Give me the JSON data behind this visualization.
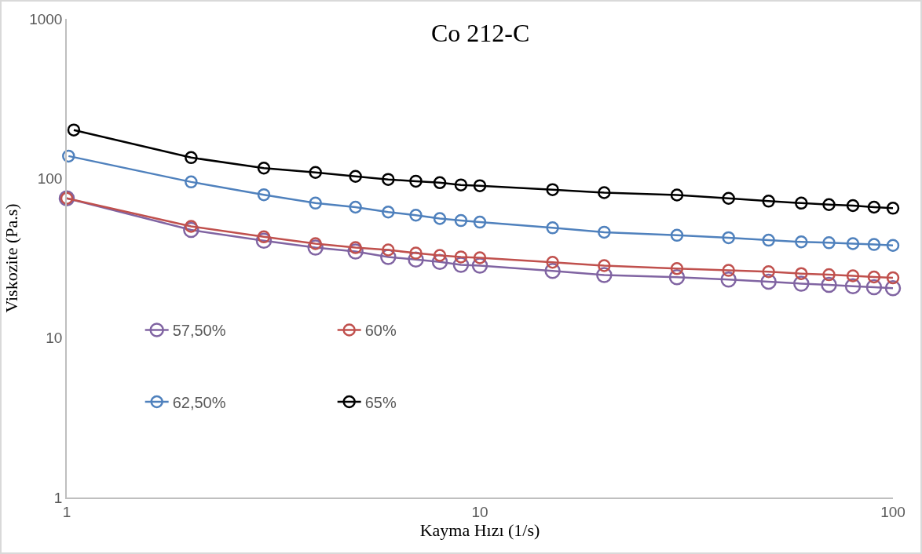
{
  "chart_data": {
    "type": "line",
    "title": "Co 212-C",
    "xlabel": "Kayma Hızı (1/s)",
    "ylabel": "Viskozite (Pa.s)",
    "log": "xy",
    "xlim": [
      1,
      100
    ],
    "ylim": [
      1,
      1000
    ],
    "xticks": [
      1,
      10,
      100
    ],
    "yticks": [
      1,
      10,
      100,
      1000
    ],
    "grid": false,
    "legend": "left",
    "marker": "circle",
    "line_style": "solid",
    "series": [
      {
        "name": "57,50%",
        "color": "#8064a2",
        "x": [
          1,
          2,
          3,
          4,
          5,
          6,
          7,
          8,
          9,
          10,
          15,
          20,
          30,
          40,
          50,
          60,
          70,
          80,
          90,
          100
        ],
        "values": [
          75,
          47.5,
          40.7,
          36.8,
          34.8,
          32.2,
          31,
          30,
          28.7,
          28.4,
          26.3,
          24.8,
          24,
          23.2,
          22.5,
          21.9,
          21.5,
          21.1,
          20.8,
          20.5
        ]
      },
      {
        "name": "60%",
        "color": "#c0504d",
        "x": [
          1,
          2,
          3,
          4,
          5,
          6,
          7,
          8,
          9,
          10,
          15,
          20,
          30,
          40,
          50,
          60,
          70,
          80,
          90,
          100
        ],
        "values": [
          75,
          50,
          43,
          39,
          36.8,
          35.6,
          34,
          32.9,
          32.2,
          31.8,
          29.8,
          28.4,
          27.2,
          26.5,
          26,
          25.3,
          24.9,
          24.5,
          24.1,
          23.8
        ]
      },
      {
        "name": "62,50%",
        "color": "#4f81bd",
        "x": [
          1.01,
          2,
          3,
          4,
          5,
          6,
          7,
          8,
          9,
          10,
          15,
          20,
          30,
          40,
          50,
          60,
          70,
          80,
          90,
          100
        ],
        "values": [
          138,
          95,
          79,
          70,
          66,
          61.5,
          58.8,
          56,
          54.4,
          53.2,
          49,
          46,
          44,
          42.5,
          41,
          40,
          39.5,
          39,
          38.5,
          38
        ]
      },
      {
        "name": "65%",
        "color": "#000000",
        "x": [
          1.04,
          2,
          3,
          4,
          5,
          6,
          7,
          8,
          9,
          10,
          15,
          20,
          30,
          40,
          50,
          60,
          70,
          80,
          90,
          100
        ],
        "values": [
          201,
          135,
          116,
          109,
          103,
          98.5,
          96,
          94,
          91,
          90,
          85,
          81.4,
          78.7,
          75,
          72,
          70,
          68.5,
          67.5,
          66,
          65
        ]
      }
    ]
  }
}
